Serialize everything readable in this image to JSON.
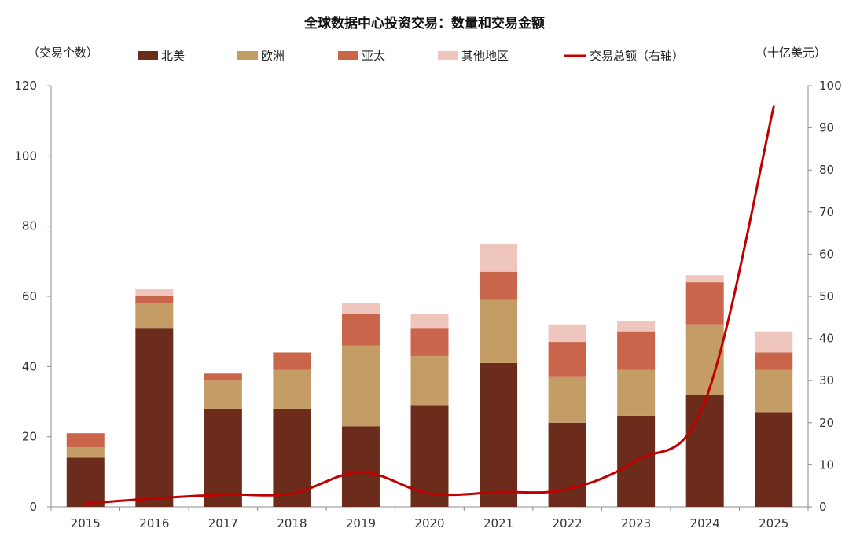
{
  "chart_data": {
    "type": "bar",
    "title": "全球数据中心投资交易：数量和交易金额",
    "y_left_label": "（交易个数）",
    "y_right_label": "（十亿美元）",
    "ylim_left": [
      0,
      120
    ],
    "ylim_right": [
      0,
      100
    ],
    "y_left_ticks": [
      "0",
      "20",
      "40",
      "60",
      "80",
      "100",
      "120"
    ],
    "y_right_ticks": [
      "0",
      "10",
      "20",
      "30",
      "40",
      "50",
      "60",
      "70",
      "80",
      "90",
      "100"
    ],
    "grid": false,
    "legend_position": "top",
    "categories": [
      "2015",
      "2016",
      "2017",
      "2018",
      "2019",
      "2020",
      "2021",
      "2022",
      "2023",
      "2024",
      "2025"
    ],
    "stacked_series": [
      {
        "name": "北美",
        "color": "#6b2c1b",
        "values": [
          14,
          51,
          28,
          28,
          23,
          29,
          41,
          24,
          26,
          32,
          27
        ]
      },
      {
        "name": "欧洲",
        "color": "#c49d66",
        "values": [
          3,
          7,
          8,
          11,
          23,
          14,
          18,
          13,
          13,
          20,
          12
        ]
      },
      {
        "name": "亚太",
        "color": "#c9654a",
        "values": [
          4,
          2,
          2,
          5,
          9,
          8,
          8,
          10,
          11,
          12,
          5
        ]
      },
      {
        "name": "其他地区",
        "color": "#eec6bd",
        "values": [
          0,
          2,
          0,
          0,
          3,
          4,
          8,
          5,
          3,
          2,
          6
        ]
      }
    ],
    "line_series": {
      "name": "交易总额（右轴）",
      "color": "#c00000",
      "axis": "right",
      "values": [
        0.8,
        2.0,
        2.9,
        3.2,
        8.2,
        3.2,
        3.5,
        4.2,
        11.0,
        25.0,
        95.0
      ]
    }
  }
}
